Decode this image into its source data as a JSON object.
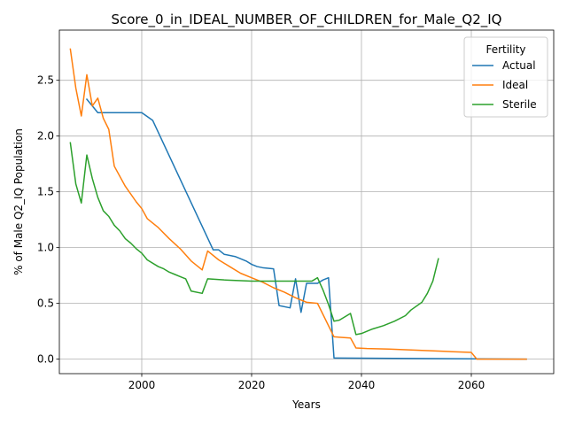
{
  "chart_data": {
    "type": "line",
    "title": "Score_0_in_IDEAL_NUMBER_OF_CHILDREN_for_Male_Q2_IQ",
    "xlabel": "Years",
    "ylabel": "% of Male Q2_IQ Population",
    "xlim": [
      1985,
      2075
    ],
    "ylim": [
      -0.13,
      2.95
    ],
    "xticks": [
      2000,
      2020,
      2040,
      2060
    ],
    "yticks": [
      0.0,
      0.5,
      1.0,
      1.5,
      2.0,
      2.5
    ],
    "xtick_labels": [
      "2000",
      "2020",
      "2040",
      "2060"
    ],
    "ytick_labels": [
      "0.0",
      "0.5",
      "1.0",
      "1.5",
      "2.0",
      "2.5"
    ],
    "grid": true,
    "legend": {
      "title": "Fertility",
      "placement": "top-right"
    },
    "series": [
      {
        "name": "Actual",
        "color": "#1f77b4",
        "x": [
          1990,
          1991,
          1992,
          1993,
          2000,
          2002,
          2013,
          2014,
          2015,
          2017,
          2019,
          2020,
          2021,
          2022,
          2024,
          2025,
          2027,
          2028,
          2029,
          2030,
          2031,
          2032,
          2033,
          2034,
          2035,
          2070
        ],
        "y": [
          2.33,
          2.27,
          2.21,
          2.21,
          2.21,
          2.14,
          0.98,
          0.98,
          0.94,
          0.92,
          0.88,
          0.85,
          0.83,
          0.82,
          0.81,
          0.48,
          0.46,
          0.72,
          0.42,
          0.68,
          0.68,
          0.68,
          0.71,
          0.73,
          0.01,
          0.0
        ]
      },
      {
        "name": "Ideal",
        "color": "#ff7f0e",
        "x": [
          1987,
          1988,
          1989,
          1990,
          1991,
          1992,
          1993,
          1994,
          1995,
          1997,
          1999,
          2000,
          2001,
          2003,
          2005,
          2007,
          2009,
          2011,
          2012,
          2014,
          2016,
          2018,
          2020,
          2022,
          2024,
          2026,
          2028,
          2030,
          2032,
          2035,
          2038,
          2039,
          2041,
          2045,
          2050,
          2055,
          2060,
          2061,
          2070
        ],
        "y": [
          2.78,
          2.43,
          2.18,
          2.55,
          2.27,
          2.34,
          2.16,
          2.06,
          1.73,
          1.55,
          1.41,
          1.35,
          1.26,
          1.18,
          1.08,
          0.99,
          0.88,
          0.8,
          0.97,
          0.89,
          0.83,
          0.77,
          0.73,
          0.69,
          0.64,
          0.6,
          0.55,
          0.51,
          0.5,
          0.2,
          0.19,
          0.1,
          0.095,
          0.09,
          0.08,
          0.07,
          0.06,
          0.0,
          0.0
        ]
      },
      {
        "name": "Sterile",
        "color": "#2ca02c",
        "x": [
          1987,
          1988,
          1989,
          1990,
          1991,
          1992,
          1993,
          1994,
          1995,
          1996,
          1997,
          1998,
          1999,
          2000,
          2001,
          2003,
          2004,
          2005,
          2006,
          2007,
          2008,
          2009,
          2011,
          2012,
          2015,
          2020,
          2025,
          2030,
          2031,
          2032,
          2033,
          2034,
          2035,
          2036,
          2038,
          2039,
          2040,
          2042,
          2044,
          2046,
          2048,
          2049,
          2051,
          2052,
          2053,
          2054
        ],
        "y": [
          1.94,
          1.57,
          1.4,
          1.83,
          1.62,
          1.45,
          1.33,
          1.28,
          1.2,
          1.15,
          1.08,
          1.04,
          0.99,
          0.95,
          0.89,
          0.83,
          0.81,
          0.78,
          0.76,
          0.74,
          0.72,
          0.61,
          0.59,
          0.72,
          0.71,
          0.7,
          0.7,
          0.7,
          0.7,
          0.73,
          0.62,
          0.49,
          0.34,
          0.35,
          0.41,
          0.22,
          0.23,
          0.27,
          0.3,
          0.34,
          0.39,
          0.44,
          0.51,
          0.59,
          0.7,
          0.9
        ]
      }
    ]
  }
}
